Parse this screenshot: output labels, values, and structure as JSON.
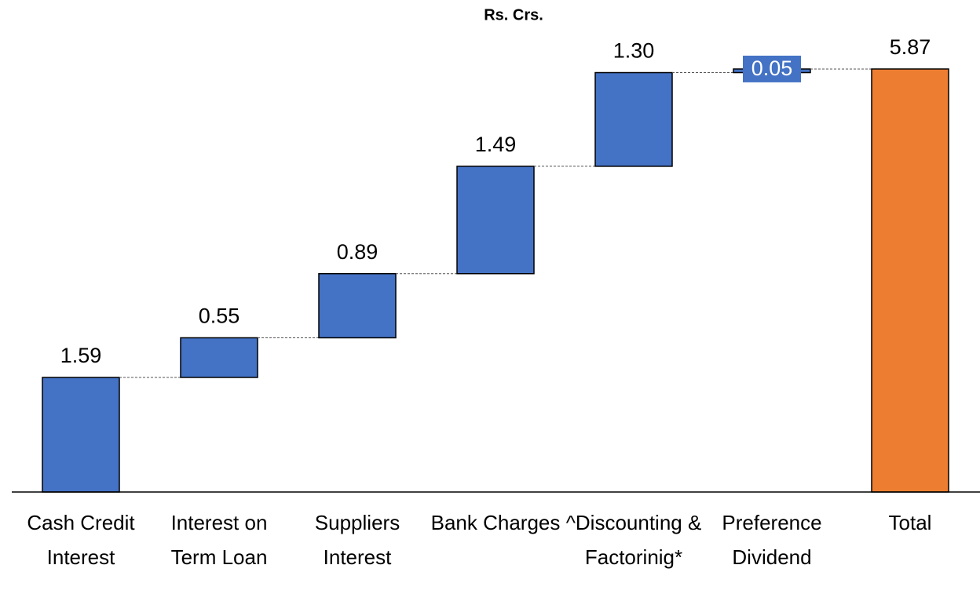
{
  "chart_data": {
    "type": "waterfall",
    "title": "Rs. Crs.",
    "categories": [
      "Cash Credit Interest",
      "Interest on Term Loan",
      "Suppliers Interest",
      "Bank Charges",
      "^Discounting & Factorinig*",
      "Preference Dividend",
      "Total"
    ],
    "values": [
      1.59,
      0.55,
      0.89,
      1.49,
      1.3,
      0.05,
      5.87
    ],
    "value_labels": [
      "1.59",
      "0.55",
      "0.89",
      "1.49",
      "1.30",
      "0.05",
      "5.87"
    ],
    "is_total": [
      false,
      false,
      false,
      false,
      false,
      false,
      true
    ],
    "color": "#4472c4",
    "total_color": "#ed7d31",
    "ylim": [
      0,
      6
    ]
  }
}
